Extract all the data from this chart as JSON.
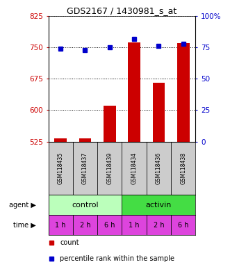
{
  "title": "GDS2167 / 1430981_s_at",
  "samples": [
    "GSM118435",
    "GSM118437",
    "GSM118439",
    "GSM118434",
    "GSM118436",
    "GSM118438"
  ],
  "counts": [
    533,
    533,
    610,
    762,
    665,
    760
  ],
  "percentiles": [
    74,
    73,
    75,
    82,
    76,
    78
  ],
  "ylim_left": [
    525,
    825
  ],
  "ylim_right": [
    0,
    100
  ],
  "yticks_left": [
    525,
    600,
    675,
    750,
    825
  ],
  "yticks_right": [
    0,
    25,
    50,
    75,
    100
  ],
  "ytick_labels_right": [
    "0",
    "25",
    "50",
    "75",
    "100%"
  ],
  "bar_color": "#cc0000",
  "dot_color": "#0000cc",
  "grid_color": "#000000",
  "agent_groups": [
    {
      "label": "control",
      "color": "#bbffbb",
      "span": [
        0,
        3
      ]
    },
    {
      "label": "activin",
      "color": "#44dd44",
      "span": [
        3,
        6
      ]
    }
  ],
  "time_labels": [
    "1 h",
    "2 h",
    "6 h",
    "1 h",
    "2 h",
    "6 h"
  ],
  "time_color": "#dd44dd",
  "sample_bg": "#cccccc",
  "legend_items": [
    {
      "color": "#cc0000",
      "label": "count"
    },
    {
      "color": "#0000cc",
      "label": "percentile rank within the sample"
    }
  ],
  "agent_label": "agent",
  "time_label": "time"
}
